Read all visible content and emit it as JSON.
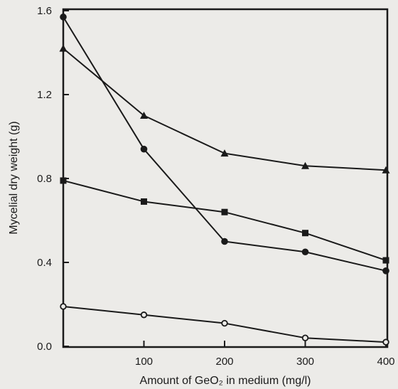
{
  "chart_data": {
    "type": "line",
    "title": "",
    "xlabel": "Amount of GeO₂ in medium (mg/l)",
    "ylabel": "Mycelial dry weight (g)",
    "xlim": [
      0,
      400
    ],
    "ylim": [
      0,
      1.6
    ],
    "xticks": [
      100,
      200,
      300,
      400
    ],
    "xtick_labels": [
      "100",
      "200",
      "300",
      "400"
    ],
    "yticks": [
      0,
      0.4,
      0.8,
      1.2,
      1.6
    ],
    "ytick_labels": [
      "0.0",
      "0.4",
      "0.8",
      "1.2",
      "1.6"
    ],
    "grid": false,
    "series": [
      {
        "marker": "triangle",
        "x": [
          0,
          100,
          200,
          300,
          400
        ],
        "y": [
          1.42,
          1.1,
          0.92,
          0.86,
          0.84
        ]
      },
      {
        "marker": "circle-filled",
        "x": [
          0,
          100,
          200,
          300,
          400
        ],
        "y": [
          1.57,
          0.94,
          0.5,
          0.45,
          0.36
        ]
      },
      {
        "marker": "square",
        "x": [
          0,
          100,
          200,
          300,
          400
        ],
        "y": [
          0.79,
          0.69,
          0.64,
          0.54,
          0.41
        ]
      },
      {
        "marker": "circle-open",
        "x": [
          0,
          100,
          200,
          300,
          400
        ],
        "y": [
          0.19,
          0.15,
          0.11,
          0.04,
          0.02
        ]
      }
    ]
  }
}
